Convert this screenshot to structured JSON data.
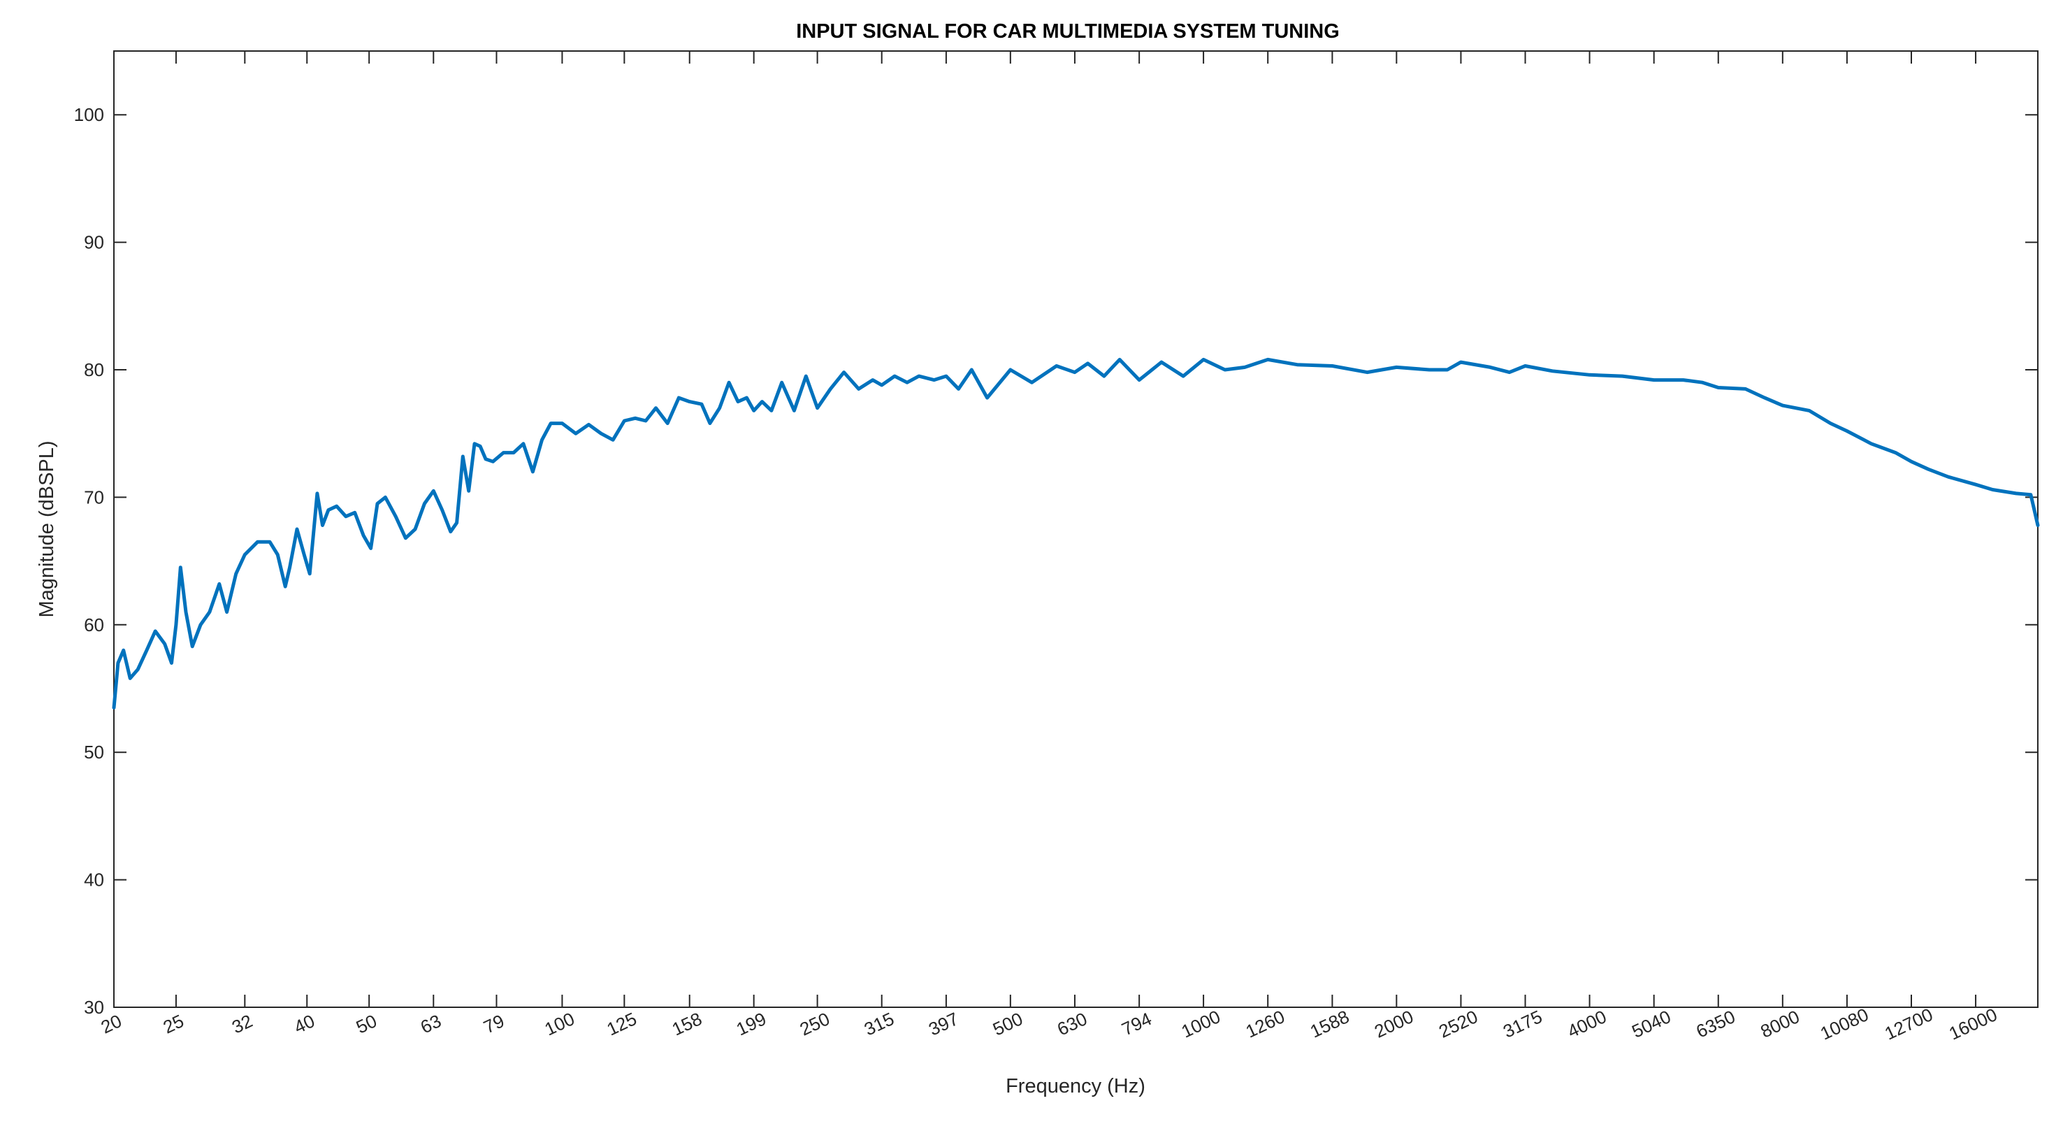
{
  "chart_data": {
    "type": "line",
    "title": "INPUT SIGNAL FOR CAR MULTIMEDIA SYSTEM TUNING",
    "xlabel": "Frequency (Hz)",
    "ylabel": "Magnitude (dBSPL)",
    "xscale": "log",
    "xlim": [
      20,
      20000
    ],
    "ylim": [
      30,
      105
    ],
    "grid": false,
    "x_ticks": [
      20,
      25,
      32,
      40,
      50,
      63,
      79,
      100,
      125,
      158,
      199,
      250,
      315,
      397,
      500,
      630,
      794,
      1000,
      1260,
      1588,
      2000,
      2520,
      3175,
      4000,
      5040,
      6350,
      8000,
      10080,
      12700,
      16000
    ],
    "y_ticks": [
      30,
      40,
      50,
      60,
      70,
      80,
      90,
      100
    ],
    "colors": {
      "series": "#0072BD",
      "axis": "#262626"
    },
    "series": [
      {
        "x": [
          20,
          20.3,
          20.7,
          21.2,
          21.8,
          22.5,
          23.2,
          24.0,
          24.6,
          25.0,
          25.4,
          25.9,
          26.5,
          27.3,
          28.2,
          29.2,
          30.0,
          31.0,
          32.0,
          33.5,
          35.0,
          36.0,
          37.0,
          37.6,
          38.6,
          39.6,
          40.4,
          41.5,
          42.3,
          43.2,
          44.5,
          46.0,
          47.5,
          49.0,
          50.3,
          51.5,
          53.0,
          55.0,
          57.0,
          59.0,
          61.0,
          63.0,
          65.0,
          67.0,
          68.5,
          70.0,
          71.5,
          73.0,
          74.5,
          76.0,
          78.0,
          81.0,
          84.0,
          87.0,
          90.0,
          93.0,
          96.0,
          100,
          105,
          110,
          115,
          120,
          125,
          130,
          135,
          140,
          146,
          152,
          158,
          165,
          170,
          176,
          182,
          188,
          194,
          199,
          205,
          212,
          220,
          230,
          240,
          250,
          262,
          275,
          290,
          305,
          315,
          330,
          345,
          360,
          380,
          397,
          415,
          435,
          460,
          500,
          540,
          590,
          630,
          660,
          700,
          740,
          794,
          860,
          930,
          1000,
          1080,
          1160,
          1260,
          1400,
          1588,
          1800,
          2000,
          2250,
          2400,
          2520,
          2800,
          3000,
          3175,
          3500,
          4000,
          4500,
          5040,
          5600,
          6000,
          6350,
          7000,
          7500,
          8000,
          8800,
          9500,
          10080,
          11000,
          12000,
          12700,
          13500,
          14500,
          16000,
          17000,
          18500,
          19500,
          20000
        ],
        "y": [
          53.5,
          57.0,
          58.0,
          55.8,
          56.5,
          58.0,
          59.5,
          58.5,
          57.0,
          60.0,
          64.5,
          61.0,
          58.3,
          60.0,
          61.0,
          63.2,
          61.0,
          64.0,
          65.5,
          66.5,
          66.5,
          65.5,
          63.0,
          64.5,
          67.5,
          65.5,
          64.0,
          70.3,
          67.8,
          69.0,
          69.3,
          68.5,
          68.8,
          67.0,
          66.0,
          69.5,
          70.0,
          68.5,
          66.8,
          67.5,
          69.5,
          70.5,
          69.0,
          67.3,
          68.0,
          73.2,
          70.5,
          74.2,
          74.0,
          73.0,
          72.8,
          73.5,
          73.5,
          74.2,
          72.0,
          74.5,
          75.8,
          75.8,
          75.0,
          75.7,
          75.0,
          74.5,
          76.0,
          76.2,
          76.0,
          77.0,
          75.8,
          77.8,
          77.5,
          77.3,
          75.8,
          77.0,
          79.0,
          77.5,
          77.8,
          76.8,
          77.5,
          76.8,
          79.0,
          76.8,
          79.5,
          77.0,
          78.5,
          79.8,
          78.5,
          79.2,
          78.8,
          79.5,
          79.0,
          79.5,
          79.2,
          79.5,
          78.5,
          80.0,
          77.8,
          80.0,
          79.0,
          80.3,
          79.8,
          80.5,
          79.5,
          80.8,
          79.2,
          80.6,
          79.5,
          80.8,
          80.0,
          80.2,
          80.8,
          80.4,
          80.3,
          79.8,
          80.2,
          80.0,
          80.0,
          80.6,
          80.2,
          79.8,
          80.3,
          79.9,
          79.6,
          79.5,
          79.2,
          79.2,
          79.0,
          78.6,
          78.5,
          77.8,
          77.2,
          76.8,
          75.8,
          75.2,
          74.2,
          73.5,
          72.8,
          72.2,
          71.6,
          71.0,
          70.6,
          70.3,
          70.2,
          67.8
        ]
      }
    ]
  }
}
